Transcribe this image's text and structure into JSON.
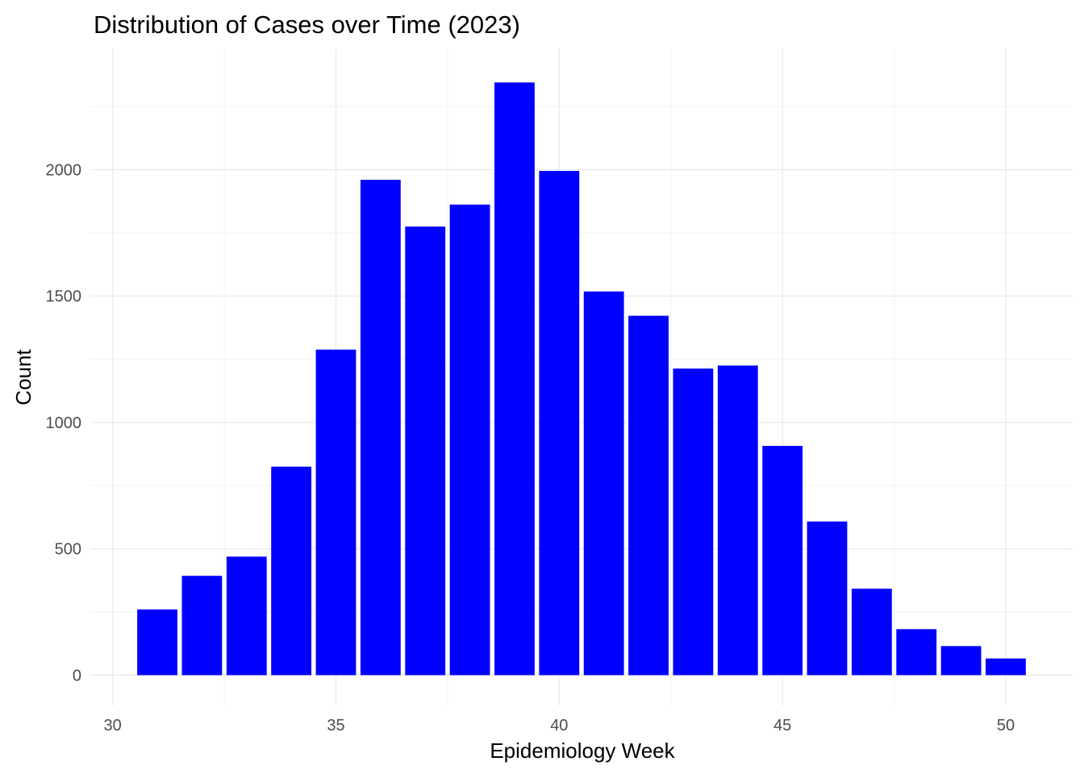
{
  "chart_data": {
    "type": "bar",
    "title": "Distribution of Cases over Time (2023)",
    "xlabel": "Epidemiology Week",
    "ylabel": "Count",
    "x": [
      31,
      32,
      33,
      34,
      35,
      36,
      37,
      38,
      39,
      40,
      41,
      42,
      43,
      44,
      45,
      46,
      47,
      48,
      49,
      50
    ],
    "values": [
      260,
      393,
      469,
      825,
      1288,
      1960,
      1775,
      1862,
      2345,
      1995,
      1518,
      1422,
      1213,
      1225,
      907,
      608,
      342,
      182,
      115,
      66
    ],
    "xlim": [
      29.5,
      51.5
    ],
    "ylim": [
      -120,
      2480
    ],
    "x_ticks": [
      30,
      35,
      40,
      45,
      50
    ],
    "x_tick_labels": [
      "30",
      "35",
      "40",
      "45",
      "50"
    ],
    "y_ticks": [
      0,
      500,
      1000,
      1500,
      2000
    ],
    "y_tick_labels": [
      "0",
      "500",
      "1000",
      "1500",
      "2000"
    ],
    "grid": true,
    "bar_color": "#0000ff",
    "background": "#ffffff",
    "grid_color": "#ebebeb"
  }
}
